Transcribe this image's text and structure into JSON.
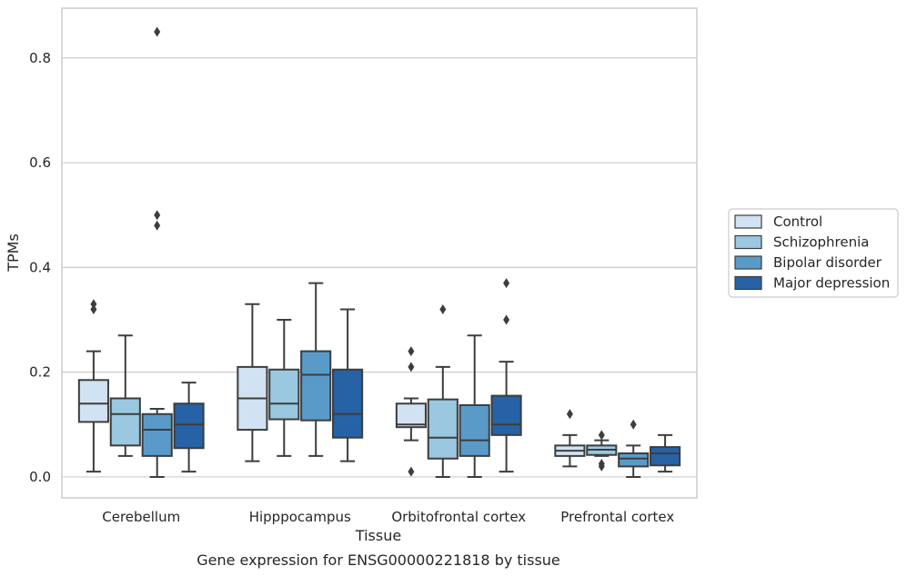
{
  "chart_data": {
    "type": "box",
    "xlabel": "Tissue",
    "ylabel": "TPMs",
    "caption": "Gene expression for ENSG00000221818 by tissue",
    "ylim": [
      -0.04,
      0.895
    ],
    "yticks": [
      0.0,
      0.2,
      0.4,
      0.6,
      0.8
    ],
    "ytick_labels": [
      "0.0",
      "0.2",
      "0.4",
      "0.6",
      "0.8"
    ],
    "grid": "horizontal",
    "legend_position": "right",
    "categories": [
      "Cerebellum",
      "Hipppocampus",
      "Orbitofrontal cortex",
      "Prefrontal cortex"
    ],
    "series": [
      {
        "name": "Control",
        "color": "#d1e2f2",
        "boxes": [
          {
            "whislo": 0.01,
            "q1": 0.105,
            "med": 0.14,
            "q3": 0.185,
            "whishi": 0.24,
            "fliers": [
              0.33,
              0.32
            ]
          },
          {
            "whislo": 0.03,
            "q1": 0.09,
            "med": 0.15,
            "q3": 0.21,
            "whishi": 0.33,
            "fliers": []
          },
          {
            "whislo": 0.07,
            "q1": 0.095,
            "med": 0.1,
            "q3": 0.14,
            "whishi": 0.15,
            "fliers": [
              0.24,
              0.21,
              0.01
            ]
          },
          {
            "whislo": 0.02,
            "q1": 0.04,
            "med": 0.05,
            "q3": 0.06,
            "whishi": 0.08,
            "fliers": [
              0.12
            ]
          }
        ]
      },
      {
        "name": "Schizophrenia",
        "color": "#9ac8e0",
        "boxes": [
          {
            "whislo": 0.04,
            "q1": 0.06,
            "med": 0.12,
            "q3": 0.15,
            "whishi": 0.27,
            "fliers": []
          },
          {
            "whislo": 0.04,
            "q1": 0.11,
            "med": 0.14,
            "q3": 0.205,
            "whishi": 0.3,
            "fliers": []
          },
          {
            "whislo": 0.0,
            "q1": 0.035,
            "med": 0.075,
            "q3": 0.148,
            "whishi": 0.21,
            "fliers": [
              0.32
            ]
          },
          {
            "whislo": 0.04,
            "q1": 0.042,
            "med": 0.052,
            "q3": 0.06,
            "whishi": 0.07,
            "fliers": [
              0.08,
              0.025,
              0.02
            ]
          }
        ]
      },
      {
        "name": "Bipolar disorder",
        "color": "#5a9ac9",
        "boxes": [
          {
            "whislo": 0.0,
            "q1": 0.04,
            "med": 0.09,
            "q3": 0.12,
            "whishi": 0.13,
            "fliers": [
              0.85,
              0.5,
              0.48
            ]
          },
          {
            "whislo": 0.04,
            "q1": 0.108,
            "med": 0.195,
            "q3": 0.24,
            "whishi": 0.37,
            "fliers": []
          },
          {
            "whislo": 0.0,
            "q1": 0.04,
            "med": 0.07,
            "q3": 0.137,
            "whishi": 0.27,
            "fliers": []
          },
          {
            "whislo": 0.0,
            "q1": 0.02,
            "med": 0.035,
            "q3": 0.045,
            "whishi": 0.06,
            "fliers": [
              0.1
            ]
          }
        ]
      },
      {
        "name": "Major depression",
        "color": "#2662a5",
        "boxes": [
          {
            "whislo": 0.01,
            "q1": 0.055,
            "med": 0.1,
            "q3": 0.14,
            "whishi": 0.18,
            "fliers": []
          },
          {
            "whislo": 0.03,
            "q1": 0.075,
            "med": 0.12,
            "q3": 0.205,
            "whishi": 0.32,
            "fliers": []
          },
          {
            "whislo": 0.01,
            "q1": 0.08,
            "med": 0.1,
            "q3": 0.155,
            "whishi": 0.22,
            "fliers": [
              0.37,
              0.3
            ]
          },
          {
            "whislo": 0.01,
            "q1": 0.022,
            "med": 0.045,
            "q3": 0.057,
            "whishi": 0.08,
            "fliers": []
          }
        ]
      }
    ]
  }
}
